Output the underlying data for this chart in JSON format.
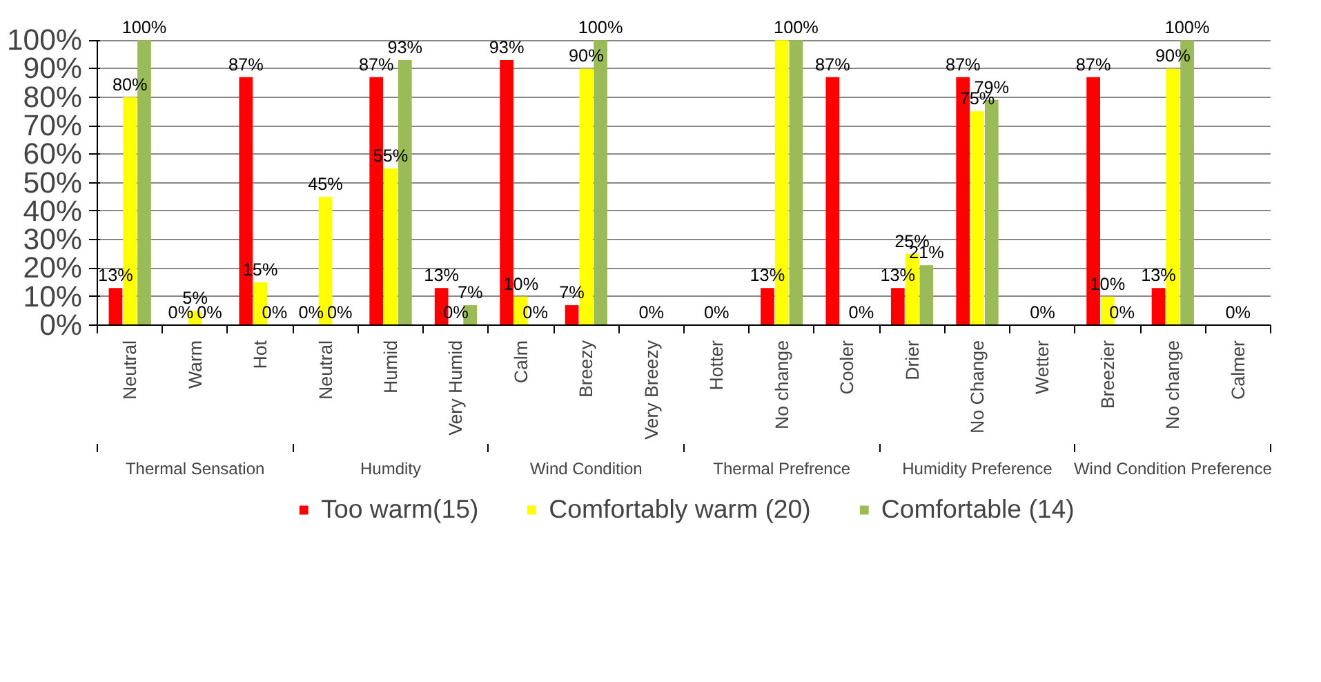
{
  "chart_data": {
    "type": "bar",
    "categories": [
      "Neutral",
      "Warm",
      "Hot",
      "Neutral",
      "Humid",
      "Very Humid",
      "Calm",
      "Breezy",
      "Very Breezy",
      "Hotter",
      "No change",
      "Cooler",
      "Drier",
      "No Change",
      "Wetter",
      "Breezier",
      "No change",
      "Calmer"
    ],
    "annotations": [
      "Thermal Sensation",
      "Humdity",
      "Wind Condition",
      "Thermal Prefrence",
      "Humidity Preference",
      "Wind Condition Preference"
    ],
    "series": [
      {
        "name": "Too warm(15)",
        "color": "#ff0000",
        "values": [
          13,
          0,
          87,
          0,
          87,
          13,
          93,
          7,
          0,
          0,
          13,
          87,
          13,
          87,
          0,
          87,
          13,
          0
        ],
        "value_labels": [
          "13%",
          "0%",
          "87%",
          "0%",
          "87%",
          "13%",
          "93%",
          "7%",
          null,
          null,
          "13%",
          "87%",
          "13%",
          "87%",
          null,
          "87%",
          "13%",
          null
        ]
      },
      {
        "name": "Comfortably warm (20)",
        "color": "#ffff00",
        "values": [
          80,
          5,
          15,
          45,
          55,
          0,
          10,
          90,
          0,
          0,
          100,
          0,
          25,
          75,
          0,
          10,
          90,
          0
        ],
        "value_labels": [
          "80%",
          "5%",
          "15%",
          "45%",
          "55%",
          "0%",
          "10%",
          "90%",
          "0%",
          "0%",
          null,
          null,
          "25%",
          "75%",
          "0%",
          "10%",
          "90%",
          "0%"
        ]
      },
      {
        "name": "Comfortable (14)",
        "color": "#9bbb59",
        "values": [
          100,
          0,
          0,
          0,
          93,
          7,
          0,
          100,
          0,
          0,
          100,
          0,
          21,
          79,
          0,
          0,
          100,
          0
        ],
        "value_labels": [
          "100%",
          "0%",
          "0%",
          "0%",
          "93%",
          "7%",
          "0%",
          "100%",
          null,
          null,
          "100%",
          "0%",
          "21%",
          "79%",
          null,
          "0%",
          "100%",
          null
        ]
      }
    ],
    "ylim": [
      0,
      100
    ],
    "yticks": [
      {
        "value": 0,
        "label": "0%"
      },
      {
        "value": 10,
        "label": "10%"
      },
      {
        "value": 20,
        "label": "20%"
      },
      {
        "value": 30,
        "label": "30%"
      },
      {
        "value": 40,
        "label": "40%"
      },
      {
        "value": 50,
        "label": "50%"
      },
      {
        "value": 60,
        "label": "60%"
      },
      {
        "value": 70,
        "label": "70%"
      },
      {
        "value": 80,
        "label": "80%"
      },
      {
        "value": 90,
        "label": "90%"
      },
      {
        "value": 100,
        "label": "100%"
      }
    ],
    "grid": "y",
    "legend": "bottom"
  }
}
